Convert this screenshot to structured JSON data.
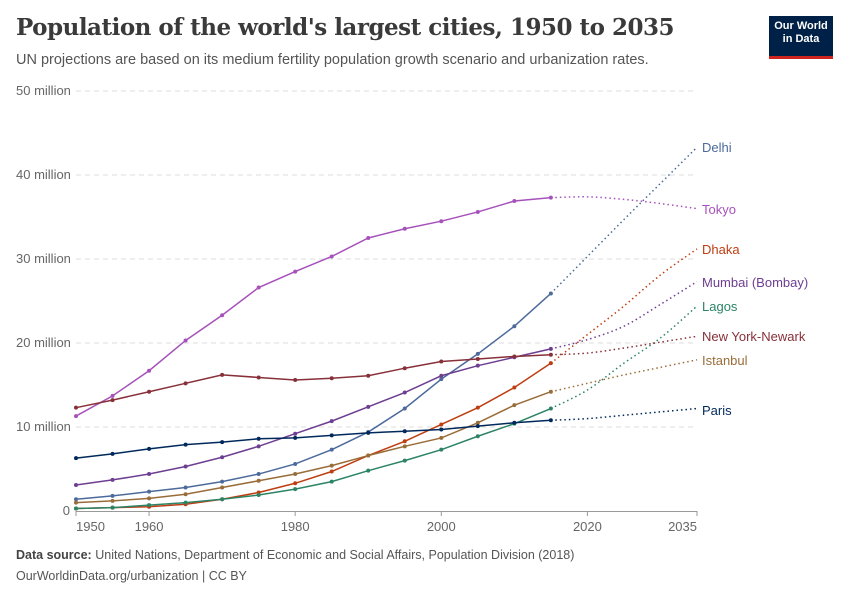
{
  "title": "Population of the world's largest cities, 1950 to 2035",
  "subtitle": "UN projections are based on its medium fertility population growth scenario and urbanization rates.",
  "logo": {
    "line1": "Our World",
    "line2": "in Data"
  },
  "footer": {
    "source_label": "Data source:",
    "source": "United Nations, Department of Economic and Social Affairs, Population Division (2018)",
    "url": "OurWorldinData.org/urbanization | CC BY"
  },
  "chart_data": {
    "type": "line",
    "title": "Population of the world's largest cities, 1950 to 2035",
    "ylim": [
      0,
      50000000
    ],
    "xlim": [
      1950,
      2035
    ],
    "y_ticks": [
      {
        "v": 0,
        "label": "0"
      },
      {
        "v": 10,
        "label": "10 million"
      },
      {
        "v": 20,
        "label": "20 million"
      },
      {
        "v": 30,
        "label": "30 million"
      },
      {
        "v": 40,
        "label": "40 million"
      },
      {
        "v": 50,
        "label": "50 million"
      }
    ],
    "x_ticks": [
      1950,
      1960,
      1980,
      2000,
      2020,
      2035
    ],
    "grid": "horizontal dashed",
    "units": "million",
    "observed_x": [
      1950,
      1955,
      1960,
      1965,
      1970,
      1975,
      1980,
      1985,
      1990,
      1995,
      2000,
      2005,
      2010,
      2015
    ],
    "projected_x": [
      2015,
      2020,
      2025,
      2030,
      2035
    ],
    "series": [
      {
        "name": "Delhi",
        "color": "#4c6a9c",
        "observed": [
          1.4,
          1.8,
          2.3,
          2.8,
          3.5,
          4.4,
          5.6,
          7.3,
          9.4,
          12.2,
          15.7,
          18.7,
          22.0,
          25.9
        ],
        "projected": [
          25.9,
          30.3,
          34.7,
          39.0,
          43.3
        ]
      },
      {
        "name": "Tokyo",
        "color": "#a652ba",
        "observed": [
          11.3,
          13.7,
          16.7,
          20.3,
          23.3,
          26.6,
          28.5,
          30.3,
          32.5,
          33.6,
          34.5,
          35.6,
          36.9,
          37.3
        ],
        "projected": [
          37.3,
          37.4,
          37.1,
          36.6,
          36.0
        ]
      },
      {
        "name": "Dhaka",
        "color": "#be3e12",
        "observed": [
          0.3,
          0.4,
          0.5,
          0.8,
          1.4,
          2.2,
          3.3,
          4.7,
          6.6,
          8.3,
          10.3,
          12.3,
          14.7,
          17.6
        ],
        "projected": [
          17.6,
          21.0,
          24.4,
          28.1,
          31.2
        ]
      },
      {
        "name": "Mumbai (Bombay)",
        "color": "#6d3e91",
        "observed": [
          3.1,
          3.7,
          4.4,
          5.3,
          6.4,
          7.7,
          9.2,
          10.7,
          12.4,
          14.1,
          16.1,
          17.3,
          18.3,
          19.3
        ],
        "projected": [
          19.3,
          20.4,
          22.0,
          24.6,
          27.3
        ]
      },
      {
        "name": "Lagos",
        "color": "#2c8465",
        "observed": [
          0.3,
          0.4,
          0.7,
          1.0,
          1.4,
          1.9,
          2.6,
          3.5,
          4.8,
          6.0,
          7.3,
          8.9,
          10.4,
          12.2
        ],
        "projected": [
          12.2,
          14.4,
          17.6,
          20.6,
          24.4
        ]
      },
      {
        "name": "New York-Newark",
        "color": "#883039",
        "observed": [
          12.3,
          13.2,
          14.2,
          15.2,
          16.2,
          15.9,
          15.6,
          15.8,
          16.1,
          17.0,
          17.8,
          18.1,
          18.4,
          18.6
        ],
        "projected": [
          18.6,
          18.8,
          19.4,
          20.1,
          20.8
        ]
      },
      {
        "name": "Istanbul",
        "color": "#996d39",
        "observed": [
          1.0,
          1.2,
          1.5,
          2.0,
          2.8,
          3.6,
          4.4,
          5.4,
          6.6,
          7.7,
          8.7,
          10.5,
          12.6,
          14.2
        ],
        "projected": [
          14.2,
          15.2,
          16.2,
          17.1,
          18.0
        ]
      },
      {
        "name": "Paris",
        "color": "#00295b",
        "observed": [
          6.3,
          6.8,
          7.4,
          7.9,
          8.2,
          8.6,
          8.7,
          9.0,
          9.3,
          9.5,
          9.7,
          10.1,
          10.5,
          10.8
        ],
        "projected": [
          10.8,
          11.0,
          11.4,
          11.8,
          12.2
        ]
      }
    ]
  }
}
